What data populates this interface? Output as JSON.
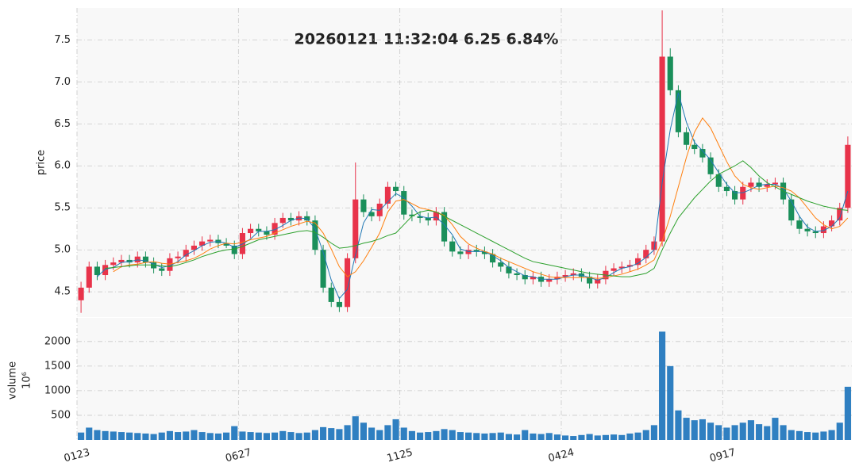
{
  "chart_data": [
    {
      "type": "candlestick",
      "title": "20260121 11:32:04   6.25 6.84%",
      "ylabel": "price",
      "categories": [
        "0123",
        null,
        null,
        null,
        null,
        null,
        null,
        null,
        null,
        null,
        null,
        null,
        null,
        null,
        null,
        null,
        null,
        null,
        null,
        null,
        "0627",
        null,
        null,
        null,
        null,
        null,
        null,
        null,
        null,
        null,
        null,
        null,
        null,
        null,
        null,
        null,
        null,
        null,
        null,
        null,
        "1125",
        null,
        null,
        null,
        null,
        null,
        null,
        null,
        null,
        null,
        null,
        null,
        null,
        null,
        null,
        null,
        null,
        null,
        null,
        null,
        "0424",
        null,
        null,
        null,
        null,
        null,
        null,
        null,
        null,
        null,
        null,
        null,
        null,
        null,
        null,
        null,
        null,
        null,
        null,
        null,
        "0917",
        null,
        null,
        null,
        null,
        null,
        null,
        null,
        null,
        null,
        null,
        null,
        null,
        null,
        null,
        null
      ],
      "open": [
        4.4,
        4.55,
        4.8,
        4.7,
        4.82,
        4.85,
        4.88,
        4.85,
        4.92,
        4.85,
        4.78,
        4.75,
        4.9,
        4.92,
        5.0,
        5.05,
        5.1,
        5.12,
        5.08,
        5.05,
        4.95,
        5.2,
        5.25,
        5.22,
        5.18,
        5.32,
        5.38,
        5.35,
        5.4,
        5.35,
        5.0,
        4.55,
        4.38,
        4.32,
        4.9,
        5.6,
        5.45,
        5.4,
        5.55,
        5.75,
        5.7,
        5.42,
        5.4,
        5.38,
        5.35,
        5.45,
        5.1,
        4.98,
        4.95,
        5.0,
        4.98,
        4.95,
        4.85,
        4.8,
        4.72,
        4.7,
        4.65,
        4.68,
        4.62,
        4.65,
        4.68,
        4.7,
        4.72,
        4.68,
        4.6,
        4.65,
        4.75,
        4.78,
        4.8,
        4.82,
        4.9,
        5.0,
        5.1,
        7.3,
        6.9,
        6.4,
        6.25,
        6.2,
        6.1,
        5.9,
        5.75,
        5.7,
        5.6,
        5.75,
        5.8,
        5.75,
        5.78,
        5.8,
        5.6,
        5.35,
        5.25,
        5.22,
        5.2,
        5.28,
        5.35,
        5.5
      ],
      "high": [
        4.62,
        4.86,
        4.86,
        4.88,
        4.91,
        4.94,
        4.94,
        4.98,
        4.98,
        4.91,
        4.84,
        4.96,
        4.98,
        5.06,
        5.11,
        5.16,
        5.18,
        5.18,
        5.14,
        5.11,
        5.26,
        5.31,
        5.31,
        5.28,
        5.38,
        5.44,
        5.44,
        5.46,
        5.46,
        5.41,
        5.06,
        4.61,
        4.44,
        4.96,
        6.04,
        5.66,
        5.51,
        5.61,
        5.81,
        5.81,
        5.76,
        5.48,
        5.46,
        5.44,
        5.51,
        5.51,
        5.16,
        5.04,
        5.06,
        5.06,
        5.04,
        5.01,
        4.91,
        4.86,
        4.78,
        4.76,
        4.74,
        4.74,
        4.71,
        4.74,
        4.76,
        4.78,
        4.78,
        4.74,
        4.71,
        4.81,
        4.84,
        4.86,
        4.88,
        4.96,
        5.06,
        5.16,
        7.85,
        7.4,
        6.96,
        6.46,
        6.31,
        6.26,
        6.16,
        5.96,
        5.81,
        5.76,
        5.81,
        5.86,
        5.86,
        5.84,
        5.86,
        5.86,
        5.66,
        5.41,
        5.31,
        5.28,
        5.34,
        5.41,
        5.56,
        6.35
      ],
      "low": [
        4.25,
        4.49,
        4.64,
        4.64,
        4.76,
        4.79,
        4.79,
        4.79,
        4.79,
        4.72,
        4.69,
        4.69,
        4.84,
        4.86,
        4.94,
        4.99,
        5.04,
        5.02,
        5.02,
        4.89,
        4.89,
        5.14,
        5.16,
        5.12,
        5.12,
        5.26,
        5.29,
        5.29,
        5.29,
        4.94,
        4.49,
        4.32,
        4.26,
        4.26,
        4.84,
        5.39,
        5.34,
        5.34,
        5.49,
        5.64,
        5.36,
        5.34,
        5.32,
        5.29,
        5.29,
        5.04,
        4.92,
        4.89,
        4.89,
        4.92,
        4.89,
        4.79,
        4.74,
        4.66,
        4.64,
        4.59,
        4.59,
        4.56,
        4.56,
        4.59,
        4.62,
        4.64,
        4.62,
        4.54,
        4.54,
        4.59,
        4.69,
        4.72,
        4.74,
        4.76,
        4.84,
        4.94,
        5.04,
        6.84,
        6.34,
        6.19,
        6.14,
        6.04,
        5.84,
        5.69,
        5.64,
        5.54,
        5.54,
        5.69,
        5.69,
        5.69,
        5.72,
        5.54,
        5.29,
        5.19,
        5.16,
        5.14,
        5.14,
        5.22,
        5.29,
        5.44
      ],
      "close": [
        4.55,
        4.8,
        4.7,
        4.82,
        4.85,
        4.88,
        4.85,
        4.92,
        4.85,
        4.78,
        4.75,
        4.9,
        4.92,
        5.0,
        5.05,
        5.1,
        5.12,
        5.08,
        5.05,
        4.95,
        5.2,
        5.25,
        5.22,
        5.18,
        5.32,
        5.38,
        5.35,
        5.4,
        5.35,
        5.0,
        4.55,
        4.38,
        4.32,
        4.9,
        5.6,
        5.45,
        5.4,
        5.55,
        5.75,
        5.7,
        5.42,
        5.4,
        5.38,
        5.35,
        5.45,
        5.1,
        4.98,
        4.95,
        5.0,
        4.98,
        4.95,
        4.85,
        4.8,
        4.72,
        4.7,
        4.65,
        4.68,
        4.62,
        4.65,
        4.68,
        4.7,
        4.72,
        4.68,
        4.6,
        4.65,
        4.75,
        4.78,
        4.8,
        4.82,
        4.9,
        5.0,
        5.1,
        7.3,
        6.9,
        6.4,
        6.25,
        6.2,
        6.1,
        5.9,
        5.75,
        5.7,
        5.6,
        5.75,
        5.8,
        5.75,
        5.78,
        5.8,
        5.6,
        5.35,
        5.25,
        5.22,
        5.2,
        5.28,
        5.35,
        5.5,
        6.25
      ],
      "up_color": "#e8334a",
      "down_color": "#1a8f5a",
      "lines": [
        {
          "color": "#1f77b4",
          "values": [
            null,
            null,
            4.68,
            4.77,
            4.79,
            4.85,
            4.86,
            4.88,
            4.87,
            4.83,
            4.79,
            4.81,
            4.86,
            4.94,
            4.99,
            5.05,
            5.09,
            5.1,
            5.08,
            5.03,
            5.07,
            5.13,
            5.22,
            5.22,
            5.24,
            5.29,
            5.35,
            5.38,
            5.37,
            5.25,
            4.97,
            4.64,
            4.42,
            4.53,
            4.94,
            5.32,
            5.48,
            5.47,
            5.57,
            5.67,
            5.62,
            5.52,
            5.4,
            5.38,
            5.39,
            5.3,
            5.18,
            5.01,
            4.98,
            4.98,
            4.98,
            4.93,
            4.87,
            4.79,
            4.74,
            4.69,
            4.68,
            4.65,
            4.65,
            4.65,
            4.68,
            4.7,
            4.7,
            4.67,
            4.64,
            4.67,
            4.73,
            4.78,
            4.8,
            4.84,
            4.91,
            5.0,
            5.8,
            6.43,
            6.87,
            6.52,
            6.28,
            6.18,
            6.07,
            5.92,
            5.78,
            5.68,
            5.68,
            5.72,
            5.77,
            5.78,
            5.78,
            5.73,
            5.58,
            5.4,
            5.27,
            5.22,
            5.23,
            5.28,
            5.38,
            5.7
          ]
        },
        {
          "color": "#ff7f0e",
          "values": [
            null,
            null,
            null,
            null,
            4.74,
            4.8,
            4.82,
            4.83,
            4.85,
            4.86,
            4.84,
            4.83,
            4.85,
            4.87,
            4.9,
            4.95,
            5.01,
            5.05,
            5.08,
            5.07,
            5.09,
            5.12,
            5.14,
            5.16,
            5.2,
            5.24,
            5.28,
            5.31,
            5.34,
            5.32,
            5.2,
            5.01,
            4.8,
            4.68,
            4.74,
            4.87,
            5.03,
            5.2,
            5.45,
            5.58,
            5.6,
            5.55,
            5.5,
            5.48,
            5.45,
            5.41,
            5.3,
            5.16,
            5.07,
            5.02,
            4.98,
            4.95,
            4.9,
            4.86,
            4.82,
            4.78,
            4.74,
            4.71,
            4.68,
            4.67,
            4.67,
            4.67,
            4.67,
            4.67,
            4.66,
            4.67,
            4.69,
            4.71,
            4.74,
            4.77,
            4.82,
            4.88,
            5.1,
            5.4,
            5.75,
            6.1,
            6.4,
            6.57,
            6.45,
            6.25,
            6.05,
            5.88,
            5.78,
            5.74,
            5.72,
            5.74,
            5.76,
            5.74,
            5.7,
            5.62,
            5.5,
            5.38,
            5.3,
            5.25,
            5.28,
            5.38
          ]
        },
        {
          "color": "#2ca02c",
          "values": [
            null,
            null,
            null,
            4.78,
            4.79,
            4.8,
            4.81,
            4.82,
            4.82,
            4.82,
            4.81,
            4.8,
            4.82,
            4.85,
            4.88,
            4.92,
            4.95,
            4.98,
            5.0,
            5.01,
            5.04,
            5.08,
            5.12,
            5.14,
            5.16,
            5.18,
            5.2,
            5.22,
            5.23,
            5.21,
            5.15,
            5.08,
            5.02,
            5.03,
            5.05,
            5.08,
            5.1,
            5.13,
            5.17,
            5.2,
            5.3,
            5.4,
            5.45,
            5.47,
            5.45,
            5.4,
            5.35,
            5.3,
            5.25,
            5.2,
            5.15,
            5.1,
            5.05,
            5.0,
            4.95,
            4.9,
            4.86,
            4.84,
            4.82,
            4.8,
            4.78,
            4.76,
            4.74,
            4.72,
            4.71,
            4.7,
            4.69,
            4.68,
            4.68,
            4.7,
            4.72,
            4.78,
            5.0,
            5.2,
            5.38,
            5.5,
            5.62,
            5.72,
            5.82,
            5.9,
            5.95,
            6.0,
            6.06,
            5.98,
            5.88,
            5.8,
            5.75,
            5.7,
            5.66,
            5.62,
            5.58,
            5.55,
            5.52,
            5.5,
            5.48,
            5.47
          ]
        }
      ],
      "ylim": [
        4.2,
        7.88
      ],
      "yticks": [
        4.5,
        {
          "value": 5,
          "label": "5.0"
        },
        5.5,
        {
          "value": 6,
          "label": "6.0"
        },
        6.5,
        {
          "value": 7,
          "label": "7.0"
        },
        7.5
      ],
      "grid": true
    },
    {
      "type": "bar",
      "ylabel": "volume",
      "offset_label": "10⁶",
      "color": "#2f7fc1",
      "values": [
        150,
        250,
        200,
        180,
        170,
        160,
        150,
        140,
        130,
        120,
        150,
        180,
        160,
        170,
        200,
        160,
        140,
        130,
        150,
        280,
        170,
        160,
        150,
        140,
        150,
        180,
        160,
        140,
        150,
        200,
        260,
        240,
        220,
        300,
        480,
        350,
        250,
        200,
        300,
        420,
        250,
        180,
        150,
        160,
        180,
        220,
        200,
        160,
        150,
        140,
        130,
        140,
        150,
        120,
        110,
        200,
        130,
        120,
        140,
        110,
        90,
        80,
        100,
        120,
        90,
        100,
        110,
        100,
        130,
        150,
        200,
        300,
        2200,
        1500,
        600,
        450,
        400,
        420,
        350,
        300,
        250,
        300,
        350,
        400,
        320,
        280,
        450,
        300,
        200,
        180,
        160,
        150,
        170,
        200,
        350,
        1080
      ],
      "ylim": [
        0,
        2480
      ],
      "yticks": [
        500,
        1000,
        1500,
        2000
      ],
      "grid": true
    }
  ]
}
